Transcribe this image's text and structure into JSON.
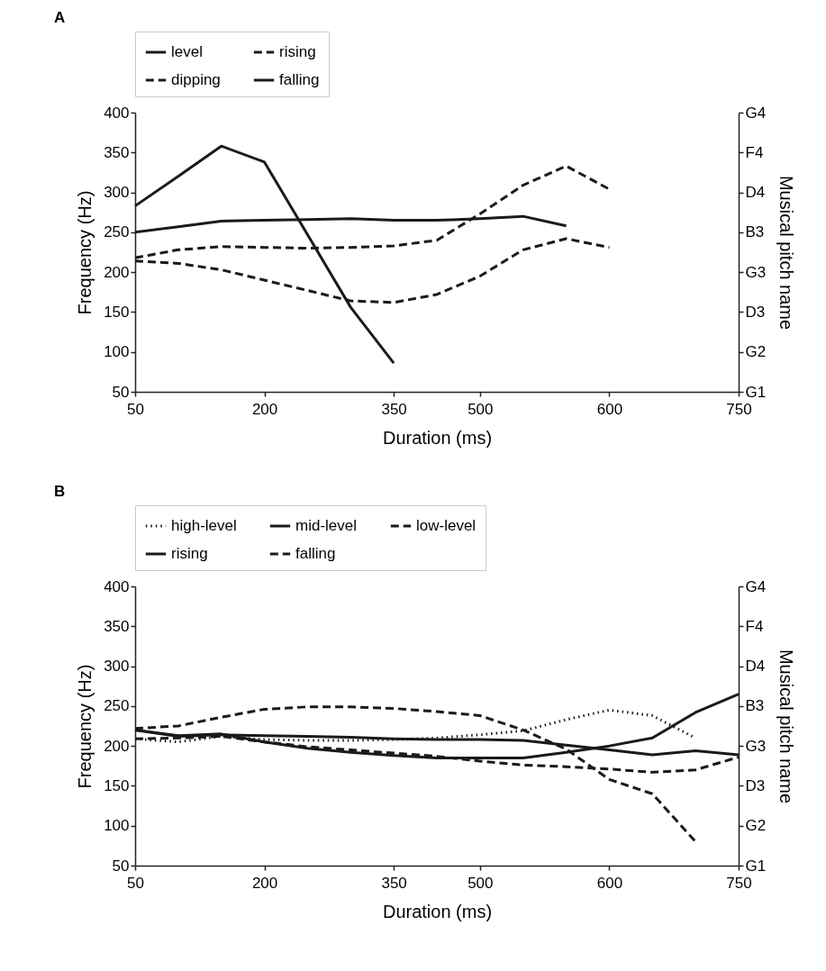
{
  "chart_data": [
    {
      "type": "line",
      "title": "A",
      "xlabel": "Duration (ms)",
      "ylabel": "Frequency (Hz)",
      "y2label": "Musical pitch name",
      "categories": [
        "50",
        null,
        null,
        "200",
        null,
        null,
        "350",
        null,
        "500",
        null,
        null,
        "600",
        null,
        null,
        "750"
      ],
      "ylim": [
        50,
        400
      ],
      "yticks": [
        50,
        100,
        150,
        200,
        250,
        300,
        350,
        400
      ],
      "y2_categories": [
        "G4",
        "F4",
        "D4",
        "B3",
        "G3",
        "D3",
        "G2",
        "G1"
      ],
      "grid": false,
      "legend": "top",
      "marker": "none",
      "series": [
        {
          "name": "level",
          "color": "#1a1a1a",
          "line_style": "solid",
          "values": [
            250,
            257,
            264,
            265,
            266,
            267,
            265,
            265,
            267,
            270,
            258,
            null,
            null,
            null,
            null
          ]
        },
        {
          "name": "rising",
          "color": "#1a1a1a",
          "line_style": "dashed",
          "values": [
            218,
            228,
            232,
            231,
            230,
            231,
            233,
            240,
            273,
            309,
            333,
            304,
            null,
            null,
            null
          ]
        },
        {
          "name": "dipping",
          "color": "#1a1a1a",
          "line_style": "dashed",
          "values": [
            214,
            211,
            203,
            190,
            177,
            164,
            162,
            172,
            195,
            228,
            242,
            231,
            null,
            null,
            null
          ]
        },
        {
          "name": "falling",
          "color": "#1a1a1a",
          "line_style": "solid",
          "values": [
            283,
            320,
            358,
            338,
            247,
            156,
            86,
            null,
            null,
            null,
            null,
            null,
            null,
            null,
            null
          ]
        }
      ]
    },
    {
      "type": "line",
      "title": "B",
      "xlabel": "Duration (ms)",
      "ylabel": "Frequency (Hz)",
      "y2label": "Musical pitch name",
      "categories": [
        "50",
        null,
        null,
        "200",
        null,
        null,
        "350",
        null,
        "500",
        null,
        null,
        "600",
        null,
        null,
        "750"
      ],
      "ylim": [
        50,
        400
      ],
      "yticks": [
        50,
        100,
        150,
        200,
        250,
        300,
        350,
        400
      ],
      "y2_categories": [
        "G4",
        "F4",
        "D4",
        "B3",
        "G3",
        "D3",
        "G2",
        "G1"
      ],
      "grid": false,
      "legend": "top",
      "marker": "none",
      "series": [
        {
          "name": "high-level",
          "color": "#1a1a1a",
          "line_style": "dotted",
          "values": [
            209,
            205,
            212,
            208,
            207,
            207,
            208,
            210,
            214,
            219,
            233,
            245,
            238,
            210,
            null
          ]
        },
        {
          "name": "mid-level",
          "color": "#1a1a1a",
          "line_style": "solid",
          "values": [
            220,
            212,
            214,
            213,
            212,
            211,
            209,
            208,
            208,
            207,
            201,
            195,
            189,
            194,
            189
          ]
        },
        {
          "name": "low-level",
          "color": "#1a1a1a",
          "line_style": "dashed",
          "values": [
            209,
            210,
            212,
            205,
            199,
            195,
            191,
            187,
            181,
            176,
            174,
            171,
            167,
            170,
            186
          ]
        },
        {
          "name": "rising",
          "color": "#1a1a1a",
          "line_style": "solid",
          "values": [
            220,
            213,
            215,
            205,
            197,
            192,
            188,
            185,
            185,
            185,
            192,
            200,
            210,
            242,
            265
          ]
        },
        {
          "name": "falling",
          "color": "#1a1a1a",
          "line_style": "dashed",
          "values": [
            222,
            225,
            236,
            246,
            249,
            249,
            247,
            243,
            238,
            220,
            196,
            158,
            140,
            80,
            null
          ]
        }
      ]
    }
  ]
}
